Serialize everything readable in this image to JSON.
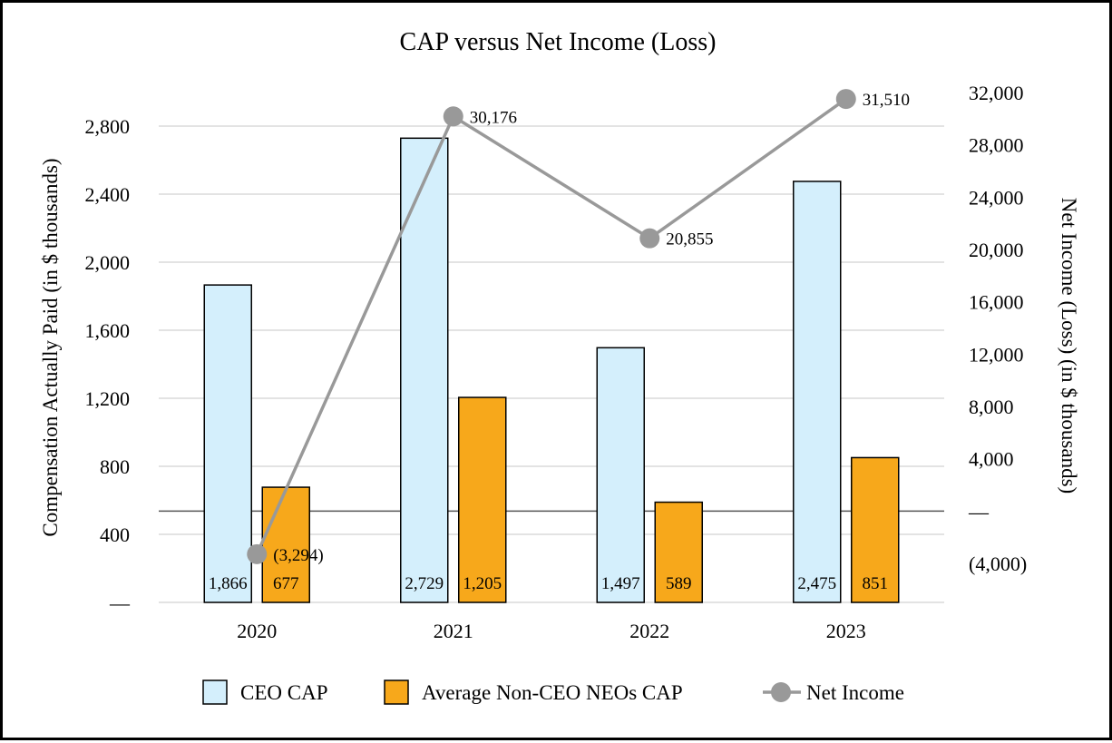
{
  "chart_data": {
    "type": "bar",
    "title": "CAP versus Net Income (Loss)",
    "categories": [
      "2020",
      "2021",
      "2022",
      "2023"
    ],
    "left_axis": {
      "label": "Compensation Actually Paid (in $ thousands)",
      "ylim": [
        0,
        2800
      ],
      "ticks": [
        0,
        400,
        800,
        1200,
        1600,
        2000,
        2400,
        2800
      ],
      "tick_labels": [
        "—",
        "400",
        "800",
        "1,200",
        "1,600",
        "2,000",
        "2,400",
        "2,800"
      ]
    },
    "right_axis": {
      "label": "Net Income (Loss) (in $ thousands)",
      "ylim": [
        -4000,
        32000
      ],
      "ticks": [
        -4000,
        0,
        4000,
        8000,
        12000,
        16000,
        20000,
        24000,
        28000,
        32000
      ],
      "tick_labels": [
        "(4,000)",
        "—",
        "4,000",
        "8,000",
        "12,000",
        "16,000",
        "20,000",
        "24,000",
        "28,000",
        "32,000"
      ]
    },
    "series": [
      {
        "name": "CEO CAP",
        "type": "bar",
        "axis": "left",
        "color": "#d4effc",
        "values": [
          1866,
          2729,
          1497,
          2475
        ],
        "labels": [
          "1,866",
          "2,729",
          "1,497",
          "2,475"
        ]
      },
      {
        "name": "Average Non-CEO NEOs CAP",
        "type": "bar",
        "axis": "left",
        "color": "#f7a81b",
        "values": [
          677,
          1205,
          589,
          851
        ],
        "labels": [
          "677",
          "1,205",
          "589",
          "851"
        ]
      },
      {
        "name": "Net Income",
        "type": "line",
        "axis": "right",
        "color": "#999999",
        "values": [
          -3294,
          30176,
          20855,
          31510
        ],
        "labels": [
          "(3,294)",
          "30,176",
          "20,855",
          "31,510"
        ]
      }
    ],
    "grid": true,
    "legend": "bottom"
  }
}
